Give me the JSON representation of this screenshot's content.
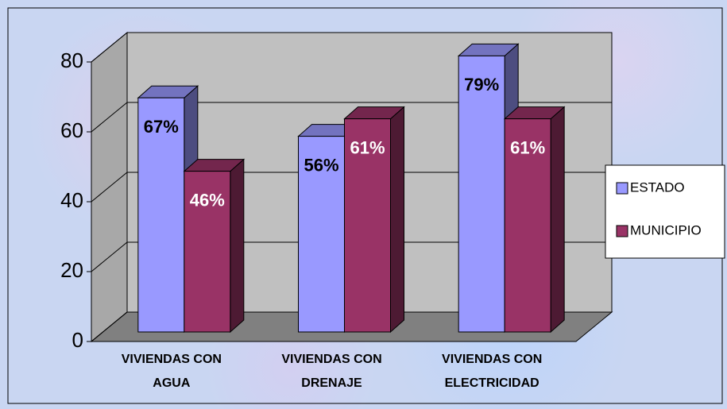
{
  "chart_data": {
    "type": "bar3d",
    "categories": [
      "VIVIENDAS CON\nAGUA",
      "VIVIENDAS CON\nDRENAJE",
      "VIVIENDAS CON\nELECTRICIDAD"
    ],
    "series": [
      {
        "name": "ESTADO",
        "color": "#9999ff",
        "values": [
          67,
          56,
          79
        ],
        "value_labels": [
          "67%",
          "56%",
          "79%"
        ]
      },
      {
        "name": "MUNICIPIO",
        "color": "#993366",
        "values": [
          46,
          61,
          61
        ],
        "value_labels": [
          "46%",
          "61%",
          "61%"
        ]
      }
    ],
    "ylim": [
      0,
      80
    ],
    "yticks": [
      0,
      20,
      40,
      60,
      80
    ],
    "grid": true,
    "legend": "right"
  }
}
